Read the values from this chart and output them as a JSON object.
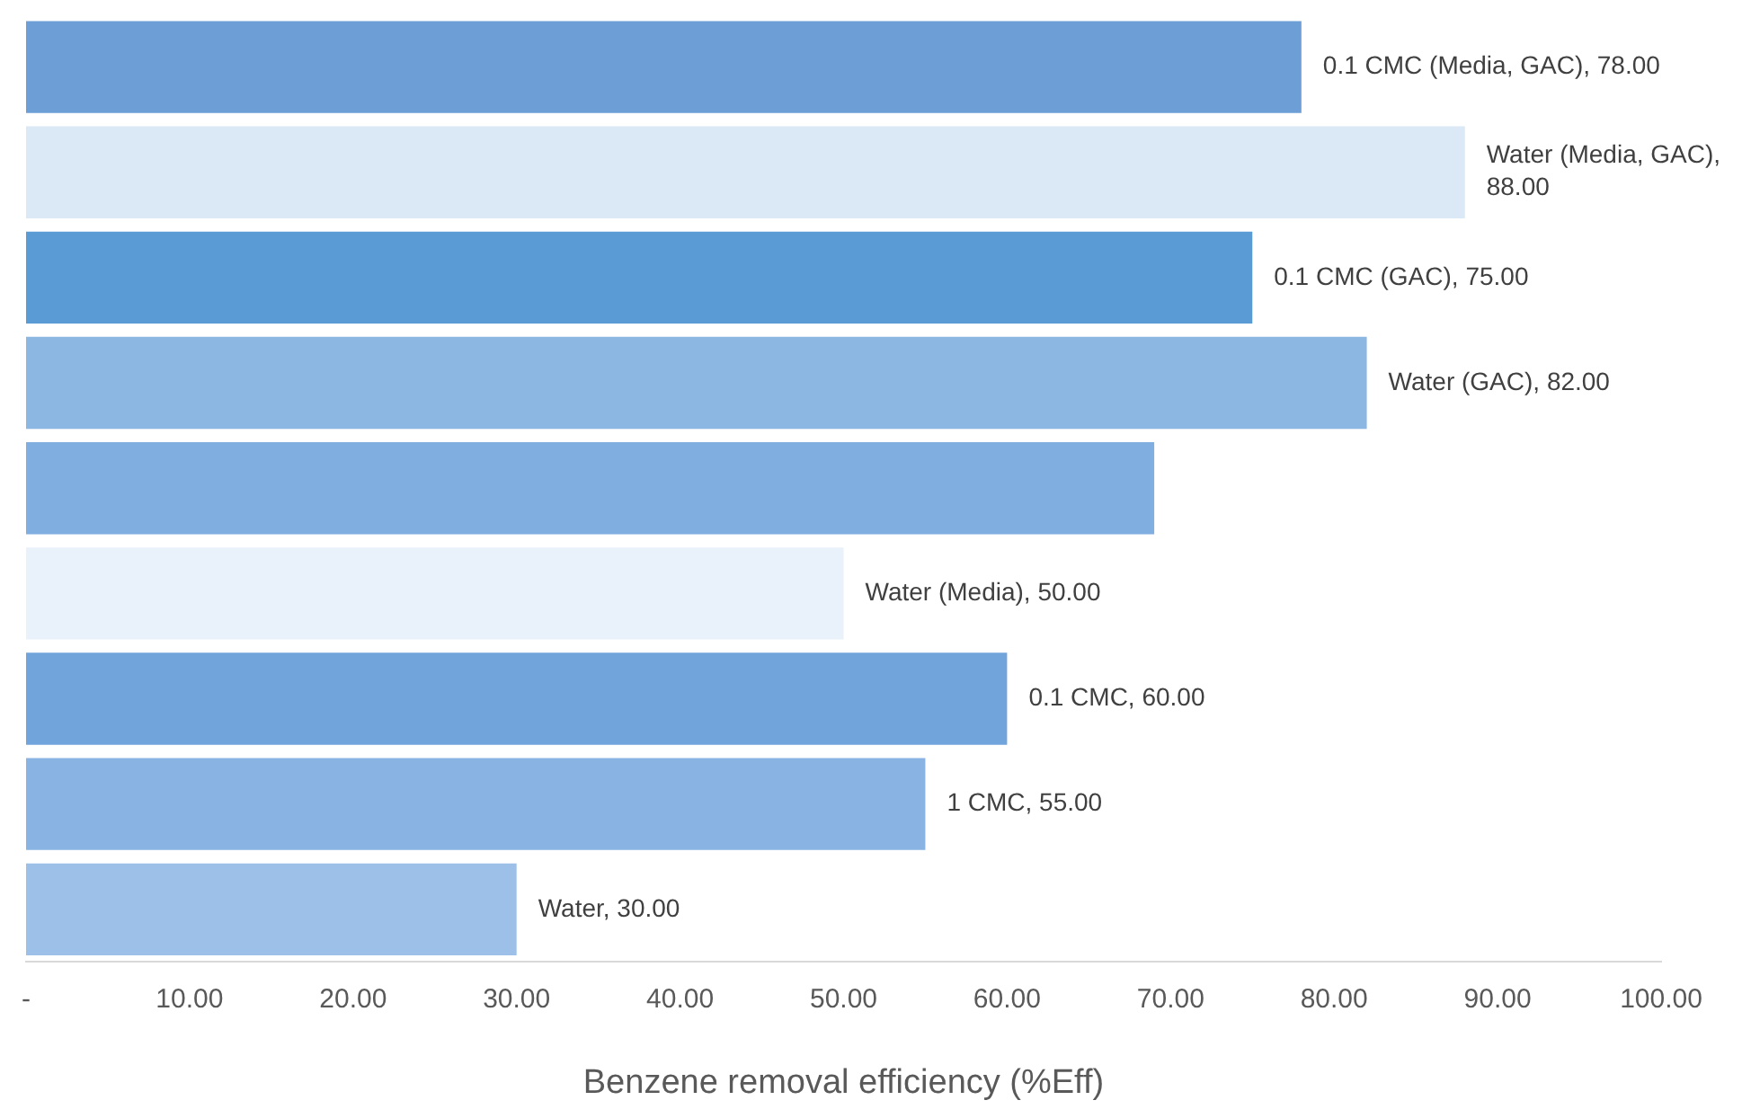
{
  "chart_data": {
    "type": "bar",
    "orientation": "horizontal",
    "xlabel": "Benzene removal efficiency (%Eff)",
    "categories": [
      null,
      null,
      null,
      null,
      null,
      null,
      null,
      null,
      null
    ],
    "values": [
      78,
      88,
      75,
      82,
      69,
      50,
      60,
      55,
      30
    ],
    "colors": [
      "#6d9fd6",
      "#dbe8f6",
      "#5b9bd5",
      "#8db7e3",
      "#80aee0",
      "#e9f1fa",
      "#70a4db",
      "#89b3e2",
      "#9cc0e8"
    ],
    "value_labels": [
      "0.1 CMC (Media, GAC), 78.00",
      "Water (Media, GAC), 88.00",
      "0.1 CMC (GAC), 75.00",
      "Water (GAC), 82.00",
      null,
      "Water (Media), 50.00",
      "0.1 CMC, 60.00",
      "1 CMC, 55.00",
      "Water, 30.00"
    ],
    "xlim": [
      0,
      100
    ],
    "xticks": [
      {
        "value": 0,
        "label": "-"
      },
      {
        "value": 10,
        "label": "10.00"
      },
      {
        "value": 20,
        "label": "20.00"
      },
      {
        "value": 30,
        "label": "30.00"
      },
      {
        "value": 40,
        "label": "40.00"
      },
      {
        "value": 50,
        "label": "50.00"
      },
      {
        "value": 60,
        "label": "60.00"
      },
      {
        "value": 70,
        "label": "70.00"
      },
      {
        "value": 80,
        "label": "80.00"
      },
      {
        "value": 90,
        "label": "90.00"
      },
      {
        "value": 100,
        "label": "100.00"
      }
    ],
    "tick_labels": "x",
    "grid": false,
    "legend": false
  }
}
